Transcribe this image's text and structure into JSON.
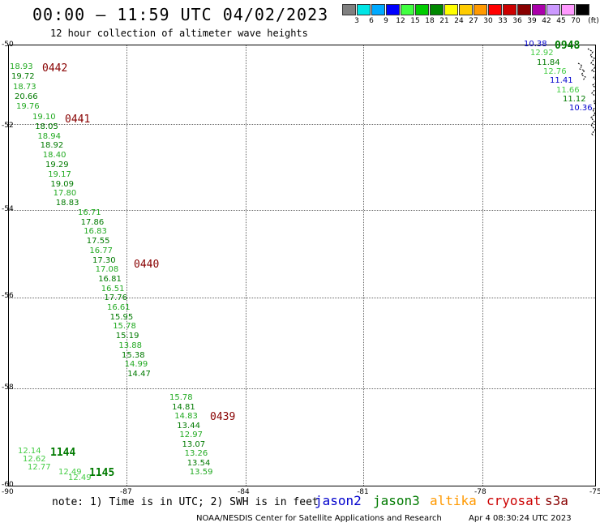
{
  "header": {
    "title": "00:00 – 11:59 UTC 04/02/2023",
    "subtitle": "12 hour collection of altimeter wave heights"
  },
  "scale": {
    "unit": "(ft)",
    "colors": [
      "#808080",
      "#00e5e5",
      "#00aaff",
      "#0000ff",
      "#40ff40",
      "#00cc00",
      "#008800",
      "#ffff00",
      "#ffcc00",
      "#ff9900",
      "#ff0000",
      "#cc0000",
      "#880000",
      "#aa00aa",
      "#cc99ff",
      "#ff99ff",
      "#000000"
    ],
    "labels": [
      "3",
      "6",
      "9",
      "12",
      "15",
      "18",
      "21",
      "24",
      "27",
      "30",
      "33",
      "36",
      "39",
      "42",
      "45",
      "70"
    ]
  },
  "map": {
    "lat_labels": [
      "-50",
      "-52",
      "-54",
      "-56",
      "-58",
      "-60"
    ],
    "lon_labels": [
      "-90",
      "-87",
      "-84",
      "-81",
      "-78",
      "-75"
    ]
  },
  "tracks": [
    {
      "satellite": "jason3",
      "time": "0442",
      "color": "#007a00",
      "values": [
        "18.93",
        "19.72",
        "18.73",
        "20.66",
        "19.76"
      ]
    },
    {
      "satellite": "jason3",
      "time": "0441",
      "color": "#007a00",
      "values": [
        "19.10",
        "18.05",
        "18.94",
        "18.92",
        "18.40",
        "19.29",
        "19.17",
        "19.09",
        "17.80",
        "18.83"
      ]
    },
    {
      "satellite": "jason3",
      "time": "0440",
      "color": "#007a00",
      "values": [
        "16.71",
        "17.86",
        "16.83",
        "17.55",
        "16.77",
        "17.30",
        "17.08",
        "16.81",
        "16.51",
        "17.76",
        "16.61",
        "15.95",
        "15.78",
        "15.19",
        "13.88",
        "15.38",
        "14.99",
        "14.47"
      ]
    },
    {
      "satellite": "jason3",
      "time": "0439",
      "color": "#007a00",
      "values": [
        "15.78",
        "14.81",
        "14.83",
        "13.44",
        "12.97",
        "13.07",
        "13.26",
        "13.54",
        "13.59"
      ]
    },
    {
      "satellite": "jason3",
      "time": "1144",
      "color": "#007a00",
      "values": [
        "12.14",
        "12.62",
        "12.77"
      ]
    },
    {
      "satellite": "jason3",
      "time": "1145",
      "color": "#007a00",
      "values": [
        "12.49",
        "12.49"
      ]
    },
    {
      "satellite": "jason3",
      "time": "0948",
      "color": "#007a00",
      "values": [
        "10.38",
        "12.92",
        "11.84",
        "12.76",
        "11.41",
        "11.66",
        "11.12",
        "10.36"
      ]
    }
  ],
  "note": "note: 1) Time is in UTC; 2) SWH is in feet",
  "legend": [
    {
      "name": "jason2",
      "color": "#0000cc"
    },
    {
      "name": "jason3",
      "color": "#007a00"
    },
    {
      "name": "altika",
      "color": "#ff9900"
    },
    {
      "name": "cryosat",
      "color": "#cc0000"
    },
    {
      "name": "s3a",
      "color": "#880000"
    }
  ],
  "credit": "NOAA/NESDIS Center for Satellite Applications and Research",
  "generated": "Apr  4 08:30:24 UTC 2023"
}
